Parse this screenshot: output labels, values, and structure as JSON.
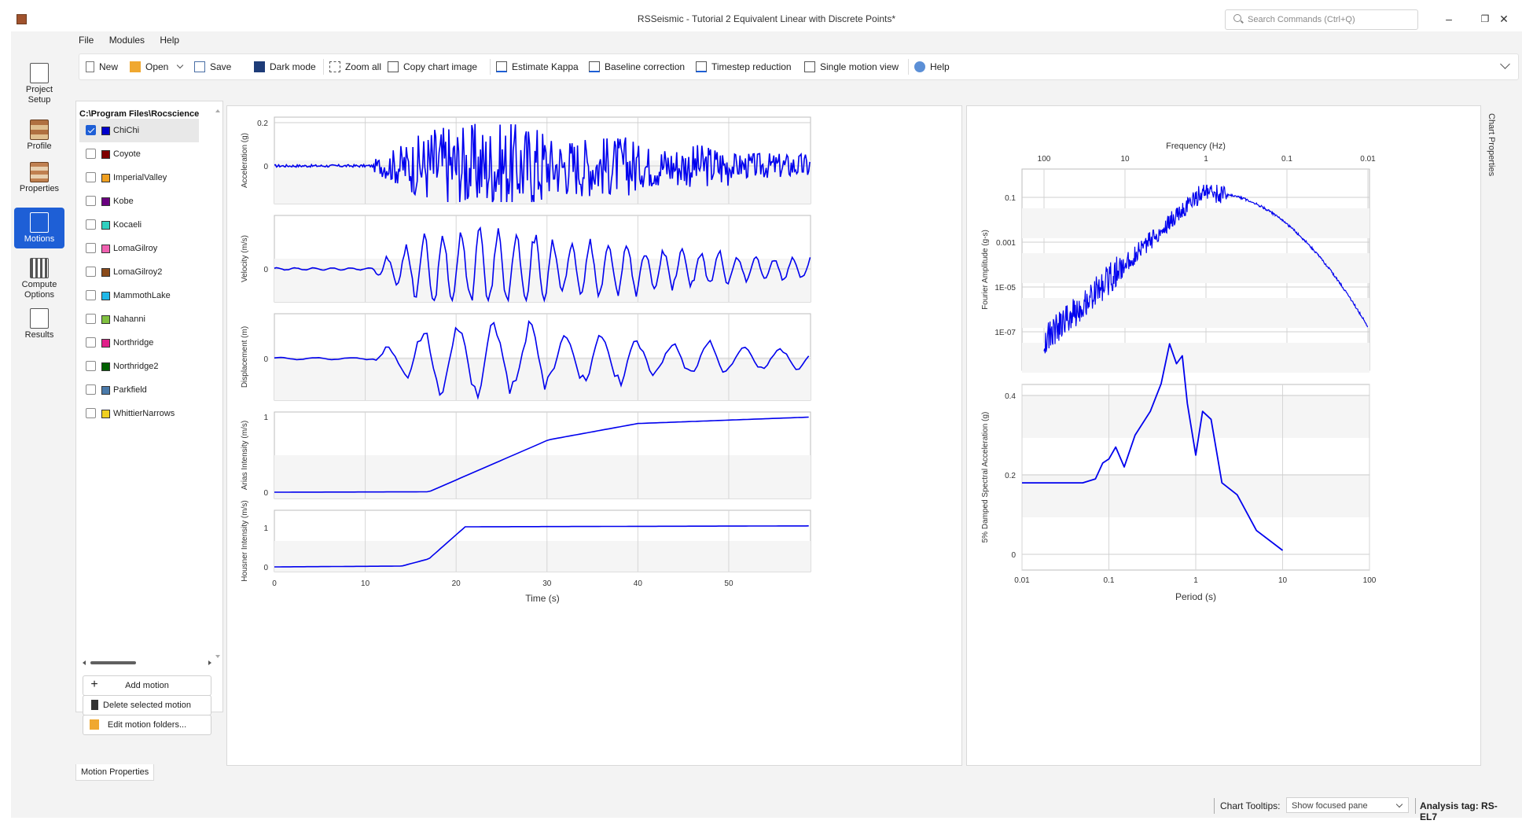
{
  "window": {
    "title": "RSSeismic - Tutorial 2 Equivalent Linear with Discrete Points*",
    "search_placeholder": "Search Commands (Ctrl+Q)"
  },
  "menu": [
    "File",
    "Modules",
    "Help"
  ],
  "toolbar": {
    "new": "New",
    "open": "Open",
    "save": "Save",
    "dark_mode": "Dark mode",
    "zoom_all": "Zoom all",
    "copy_chart": "Copy chart image",
    "estimate_kappa": "Estimate Kappa",
    "baseline": "Baseline correction",
    "timestep": "Timestep reduction",
    "single_motion": "Single motion view",
    "help": "Help"
  },
  "sidebar": {
    "project_setup": [
      "Project",
      "Setup"
    ],
    "profile": "Profile",
    "properties": "Properties",
    "motions": "Motions",
    "compute_options": [
      "Compute",
      "Options"
    ],
    "results": "Results"
  },
  "motions_panel": {
    "path": "C:\\Program Files\\Rocscience",
    "items": [
      {
        "name": "ChiChi",
        "color": "#0000cc",
        "checked": true
      },
      {
        "name": "Coyote",
        "color": "#7f0000",
        "checked": false
      },
      {
        "name": "ImperialValley",
        "color": "#f0a020",
        "checked": false
      },
      {
        "name": "Kobe",
        "color": "#6a0080",
        "checked": false
      },
      {
        "name": "Kocaeli",
        "color": "#30d0c0",
        "checked": false
      },
      {
        "name": "LomaGilroy",
        "color": "#f060b0",
        "checked": false
      },
      {
        "name": "LomaGilroy2",
        "color": "#8a4a1a",
        "checked": false
      },
      {
        "name": "MammothLake",
        "color": "#20b8e8",
        "checked": false
      },
      {
        "name": "Nahanni",
        "color": "#80c040",
        "checked": false
      },
      {
        "name": "Northridge",
        "color": "#e0208a",
        "checked": false
      },
      {
        "name": "Northridge2",
        "color": "#006000",
        "checked": false
      },
      {
        "name": "Parkfield",
        "color": "#4a7aaa",
        "checked": false
      },
      {
        "name": "WhittierNarrows",
        "color": "#f0d020",
        "checked": false
      }
    ],
    "add_motion": "Add motion",
    "delete_motion": "Delete selected motion",
    "edit_folders": "Edit motion folders...",
    "properties_tab": "Motion Properties"
  },
  "right_tab": "Chart Properties",
  "status": {
    "tooltips_label": "Chart Tooltips:",
    "tooltips_value": "Show focused pane",
    "analysis_tag": "Analysis tag: RS-EL7"
  },
  "chart_data": [
    {
      "type": "line",
      "title": "",
      "xlabel": "Time (s)",
      "xlim": [
        0,
        59
      ],
      "xticks": [
        0,
        10,
        20,
        30,
        40,
        50
      ],
      "series_color": "#0000ee",
      "panels": [
        {
          "ylabel": "Acceleration (g)",
          "yticks": [
            0,
            0.2
          ]
        },
        {
          "ylabel": "Velocity (m/s)",
          "yticks": [
            0
          ]
        },
        {
          "ylabel": "Displacement (m)",
          "yticks": [
            0
          ]
        },
        {
          "ylabel": "Arias Intensity (m/s)",
          "yticks": [
            0,
            1
          ]
        },
        {
          "ylabel": "Housner Intensity (m/s)",
          "yticks": [
            0,
            1
          ]
        }
      ]
    },
    {
      "type": "line",
      "scale": "log-log",
      "xlabel_top": "Frequency (Hz)",
      "top_ticks": [
        "100",
        "10",
        "1",
        "0.1",
        "0.01"
      ],
      "ylabel": "Fourier Amplitude (g-s)",
      "yticks": [
        "0.1",
        "0.001",
        "1E-05",
        "1E-07"
      ]
    },
    {
      "type": "line",
      "xscale": "log",
      "xlabel": "Period (s)",
      "xticks": [
        "0.01",
        "0.1",
        "1",
        "10",
        "100"
      ],
      "ylabel": "5% Damped Spectral Acceleration (g)",
      "yticks": [
        "0",
        "0.2",
        "0.4"
      ],
      "x": [
        0.01,
        0.05,
        0.07,
        0.085,
        0.1,
        0.12,
        0.15,
        0.2,
        0.3,
        0.4,
        0.5,
        0.6,
        0.7,
        0.8,
        1.0,
        1.2,
        1.5,
        2.0,
        3.0,
        5.0,
        10.0
      ],
      "y": [
        0.18,
        0.18,
        0.19,
        0.23,
        0.24,
        0.27,
        0.22,
        0.3,
        0.36,
        0.43,
        0.53,
        0.48,
        0.5,
        0.38,
        0.25,
        0.36,
        0.34,
        0.18,
        0.15,
        0.06,
        0.01
      ]
    }
  ]
}
